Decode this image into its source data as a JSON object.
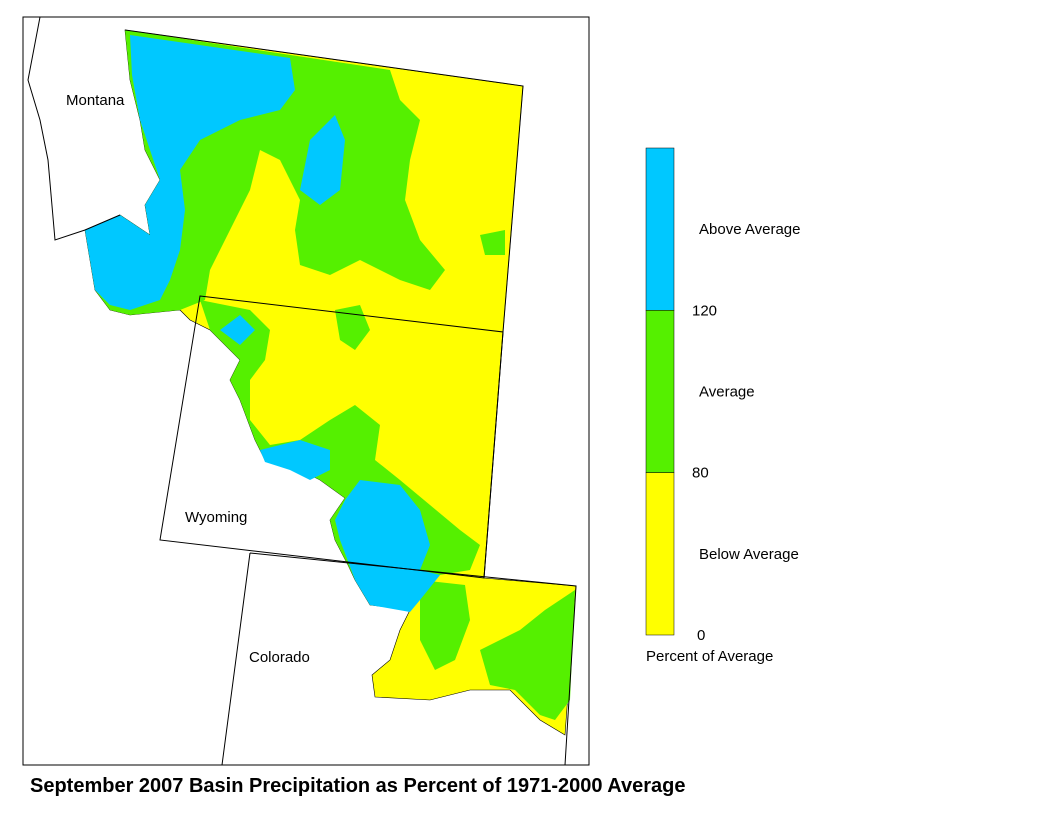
{
  "map": {
    "title": "September 2007 Basin Precipitation as Percent of 1971-2000 Average",
    "states": [
      "Montana",
      "Wyoming",
      "Colorado"
    ],
    "legend": {
      "title": "Percent of Average",
      "classes": [
        {
          "label": "Above Average",
          "color": "#00c8ff"
        },
        {
          "label": "Average",
          "color": "#55f000"
        },
        {
          "label": "Below Average",
          "color": "#ffff00"
        }
      ],
      "ticks": [
        120,
        80,
        0
      ]
    }
  }
}
